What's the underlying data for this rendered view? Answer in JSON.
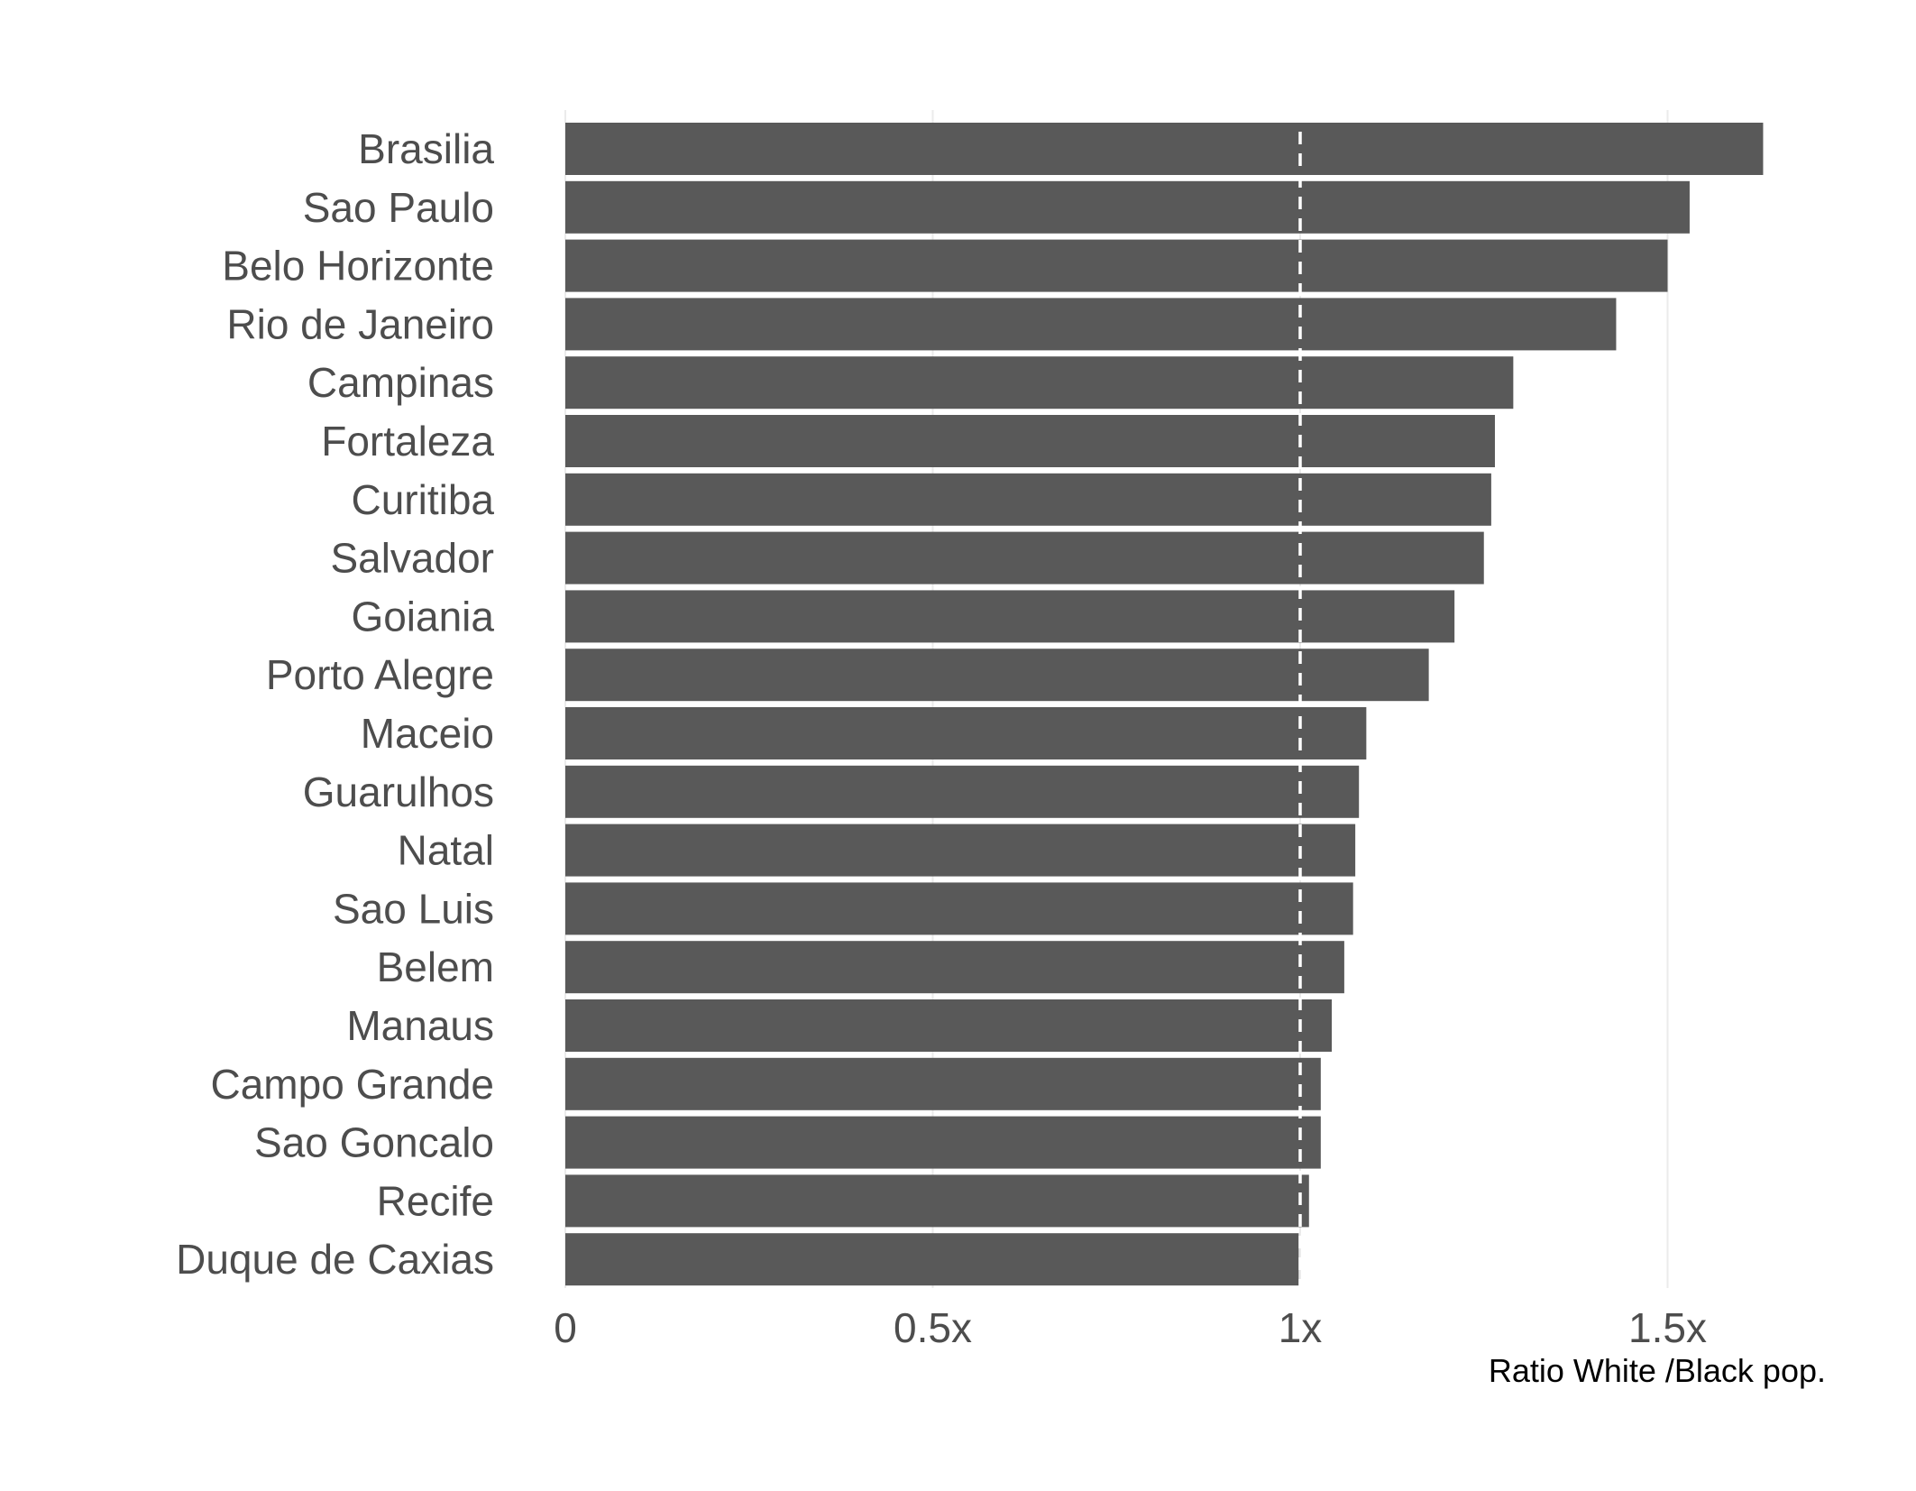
{
  "chart_data": {
    "type": "bar",
    "orientation": "horizontal",
    "categories": [
      "Brasilia",
      "Sao Paulo",
      "Belo Horizonte",
      "Rio de Janeiro",
      "Campinas",
      "Fortaleza",
      "Curitiba",
      "Salvador",
      "Goiania",
      "Porto Alegre",
      "Maceio",
      "Guarulhos",
      "Natal",
      "Sao Luis",
      "Belem",
      "Manaus",
      "Campo Grande",
      "Sao Goncalo",
      "Recife",
      "Duque de Caxias"
    ],
    "values": [
      1.63,
      1.53,
      1.5,
      1.43,
      1.29,
      1.265,
      1.26,
      1.25,
      1.21,
      1.175,
      1.09,
      1.08,
      1.075,
      1.072,
      1.06,
      1.043,
      1.028,
      1.028,
      1.012,
      0.998
    ],
    "xlabel": "Ratio White /Black pop.",
    "ylabel": "",
    "xlim": [
      0,
      1.75
    ],
    "xticks": [
      0,
      0.5,
      1,
      1.5
    ],
    "xtick_labels": [
      "0",
      "0.5x",
      "1x",
      "1.5x"
    ],
    "reference_line": {
      "x": 1,
      "style": "dashed",
      "color": "#ffffff"
    },
    "grid": "vertical major only",
    "legend": "none",
    "colors": {
      "bar": "#595959",
      "grid": "#ebebeb",
      "background": "#ffffff"
    }
  }
}
